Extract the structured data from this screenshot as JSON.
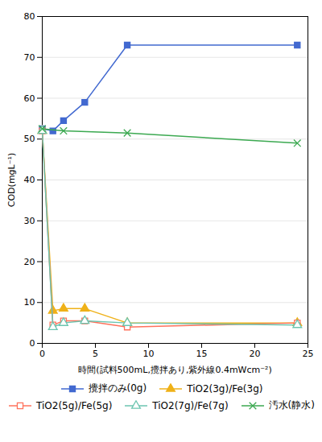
{
  "chart_data": {
    "type": "line",
    "xlabel": "時間(試料500mL,攪拌あり,紫外線0.4mWcm⁻²)",
    "ylabel": "COD(mgL⁻¹)",
    "xlim": [
      0,
      25
    ],
    "ylim": [
      0,
      80
    ],
    "xticks": [
      0,
      5,
      10,
      15,
      20,
      25
    ],
    "yticks": [
      0,
      10,
      20,
      30,
      40,
      50,
      60,
      70,
      80
    ],
    "grid": "y",
    "legend": "bottom",
    "series": [
      {
        "name": "攪拌のみ(0g)",
        "x": [
          0,
          1,
          2,
          4,
          8,
          24
        ],
        "values": [
          52.5,
          52.0,
          54.5,
          59.0,
          73.0,
          73.0
        ],
        "marker": "square",
        "line_style": "solid"
      },
      {
        "name": "TiO2(3g)/Fe(3g)",
        "x": [
          0,
          1,
          2,
          4,
          8,
          24
        ],
        "values": [
          52.0,
          8.0,
          8.5,
          8.5,
          5.0,
          5.0
        ],
        "marker": "triangle",
        "line_style": "solid"
      },
      {
        "name": "TiO2(5g)/Fe(5g)",
        "x": [
          0,
          1,
          2,
          4,
          8,
          24
        ],
        "values": [
          52.0,
          4.5,
          5.5,
          5.5,
          4.0,
          5.0
        ],
        "marker": "square-open",
        "line_style": "solid"
      },
      {
        "name": "TiO2(7g)/Fe(7g)",
        "x": [
          0,
          1,
          2,
          4,
          8,
          24
        ],
        "values": [
          52.0,
          4.0,
          5.0,
          5.5,
          5.0,
          4.5
        ],
        "marker": "triangle-open",
        "line_style": "solid"
      },
      {
        "name": "汚水(静水)",
        "x": [
          0,
          2,
          8,
          24
        ],
        "values": [
          52.5,
          52.0,
          51.5,
          49.0
        ],
        "marker": "times",
        "line_style": "solid"
      }
    ]
  }
}
